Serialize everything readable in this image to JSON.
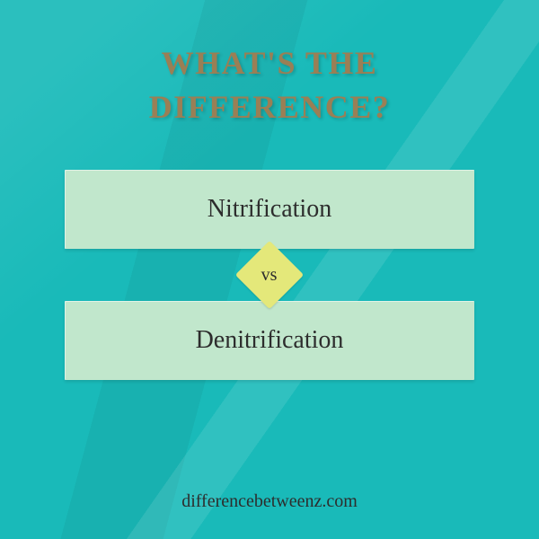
{
  "background_color": "#19bab9",
  "heading": {
    "line1": "WHAT'S THE",
    "line2": "DIFFERENCE?",
    "color": "#9a7f55",
    "fontsize": 36
  },
  "comparison": {
    "card_bg": "#c1e7cc",
    "card_text_color": "#2d2d2d",
    "card_fontsize": 28,
    "term_a": "Nitrification",
    "term_b": "Denitrification",
    "vs": {
      "label": "vs",
      "bg": "#e4e87a",
      "text_color": "#2d2d2d",
      "fontsize": 20
    }
  },
  "footer": {
    "text": "differencebetweenz.com",
    "color": "#2d2d2d",
    "fontsize": 20
  }
}
